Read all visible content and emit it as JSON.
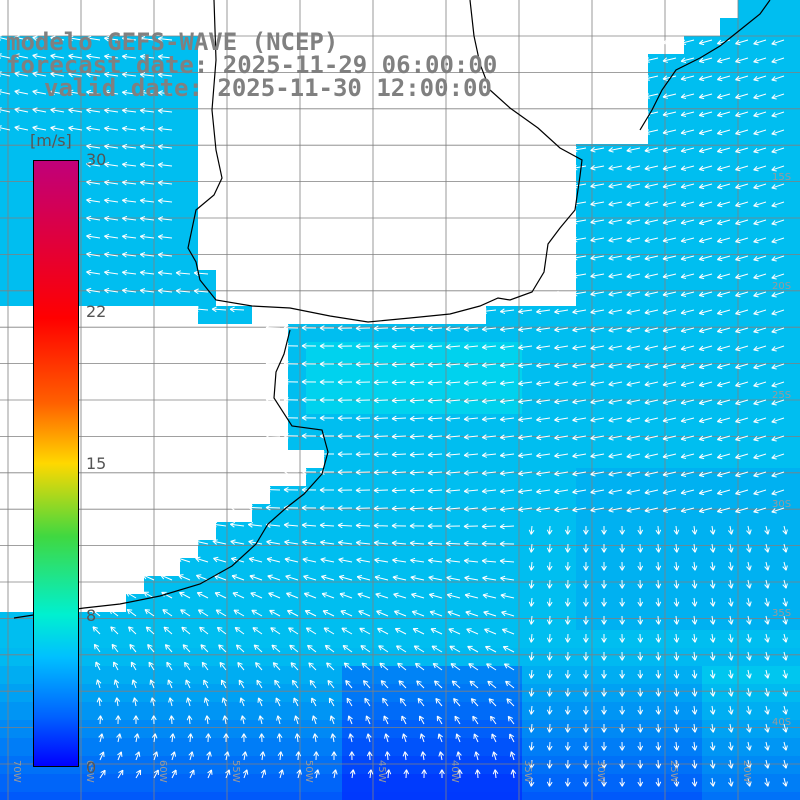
{
  "title": {
    "model": "modelo GEFS-WAVE (NCEP)",
    "forecast": "forecast date: 2025-11-29 06:00:00",
    "valid": "valid date: 2025-11-30 12:00:00"
  },
  "colorbar": {
    "unit": "[m/s]",
    "ticks": [
      "30",
      "22",
      "15",
      "8",
      "0"
    ],
    "range": [
      0,
      30
    ],
    "colors": [
      "#0000ff",
      "#0060ff",
      "#00c0ff",
      "#00f0d0",
      "#40d840",
      "#ffd800",
      "#ff6000",
      "#ff0000",
      "#c0007a"
    ]
  },
  "map": {
    "longitude_labels": [
      "70W",
      "65W",
      "60W",
      "55W",
      "50W",
      "45W",
      "40W",
      "35W",
      "30W",
      "25W",
      "20W"
    ],
    "latitude_labels": [
      "15S",
      "20S",
      "25S",
      "30S",
      "35S",
      "40S"
    ],
    "land_color": "#ffffff",
    "grid_color": "#808080",
    "arrow_color": "#ffffff"
  }
}
